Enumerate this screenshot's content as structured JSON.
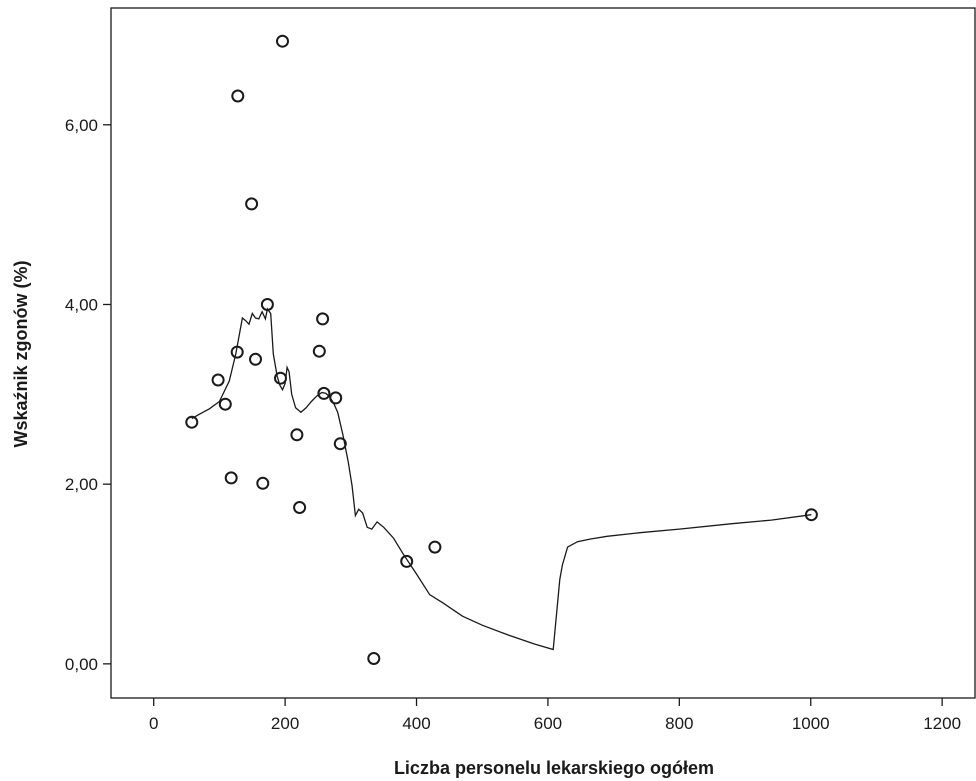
{
  "chart_data": {
    "type": "scatter",
    "title": "",
    "xlabel": "Liczba personelu lekarskiego ogółem",
    "ylabel": "Wskaźnik zgonów (%)",
    "xlim": [
      -65,
      1250
    ],
    "ylim": [
      -0.38,
      7.3
    ],
    "xticks": [
      0,
      200,
      400,
      600,
      800,
      1000,
      1200
    ],
    "xtick_labels": [
      "0",
      "200",
      "400",
      "600",
      "800",
      "1000",
      "1200"
    ],
    "yticks": [
      0,
      2,
      4,
      6
    ],
    "ytick_labels": [
      "0,00",
      "2,00",
      "4,00",
      "6,00"
    ],
    "grid": false,
    "legend": "none",
    "points": [
      {
        "x": 58,
        "y": 2.69
      },
      {
        "x": 98,
        "y": 3.16
      },
      {
        "x": 109,
        "y": 2.89
      },
      {
        "x": 118,
        "y": 2.07
      },
      {
        "x": 127,
        "y": 3.47
      },
      {
        "x": 128,
        "y": 6.32
      },
      {
        "x": 149,
        "y": 5.12
      },
      {
        "x": 155,
        "y": 3.39
      },
      {
        "x": 166,
        "y": 2.01
      },
      {
        "x": 173,
        "y": 4.0
      },
      {
        "x": 193,
        "y": 3.18
      },
      {
        "x": 196,
        "y": 6.93
      },
      {
        "x": 218,
        "y": 2.55
      },
      {
        "x": 222,
        "y": 1.74
      },
      {
        "x": 252,
        "y": 3.48
      },
      {
        "x": 257,
        "y": 3.84
      },
      {
        "x": 259,
        "y": 3.01
      },
      {
        "x": 277,
        "y": 2.96
      },
      {
        "x": 284,
        "y": 2.45
      },
      {
        "x": 335,
        "y": 0.06
      },
      {
        "x": 385,
        "y": 1.14
      },
      {
        "x": 428,
        "y": 1.3
      },
      {
        "x": 1001,
        "y": 1.66
      }
    ],
    "fit_line": {
      "x": [
        58,
        70,
        85,
        100,
        115,
        125,
        135,
        140,
        145,
        150,
        155,
        160,
        165,
        170,
        173,
        178,
        182,
        188,
        192,
        196,
        200,
        203,
        206,
        210,
        216,
        224,
        232,
        240,
        248,
        256,
        262,
        268,
        274,
        280,
        288,
        296,
        302,
        307,
        312,
        318,
        325,
        332,
        340,
        350,
        365,
        380,
        400,
        420,
        440,
        470,
        500,
        540,
        580,
        608,
        613,
        618,
        622,
        630,
        645,
        665,
        690,
        740,
        800,
        880,
        940,
        1001
      ],
      "y": [
        2.73,
        2.78,
        2.84,
        2.92,
        3.15,
        3.45,
        3.85,
        3.82,
        3.78,
        3.9,
        3.85,
        3.84,
        3.92,
        3.84,
        3.95,
        3.9,
        3.45,
        3.2,
        3.1,
        3.05,
        3.12,
        3.3,
        3.25,
        3.0,
        2.85,
        2.8,
        2.85,
        2.92,
        2.98,
        3.02,
        3.01,
        2.97,
        2.9,
        2.8,
        2.55,
        2.25,
        1.98,
        1.65,
        1.72,
        1.68,
        1.52,
        1.5,
        1.58,
        1.52,
        1.4,
        1.22,
        1.0,
        0.77,
        0.68,
        0.53,
        0.43,
        0.32,
        0.22,
        0.16,
        0.55,
        0.94,
        1.1,
        1.3,
        1.36,
        1.39,
        1.42,
        1.46,
        1.5,
        1.56,
        1.6,
        1.66
      ]
    }
  }
}
